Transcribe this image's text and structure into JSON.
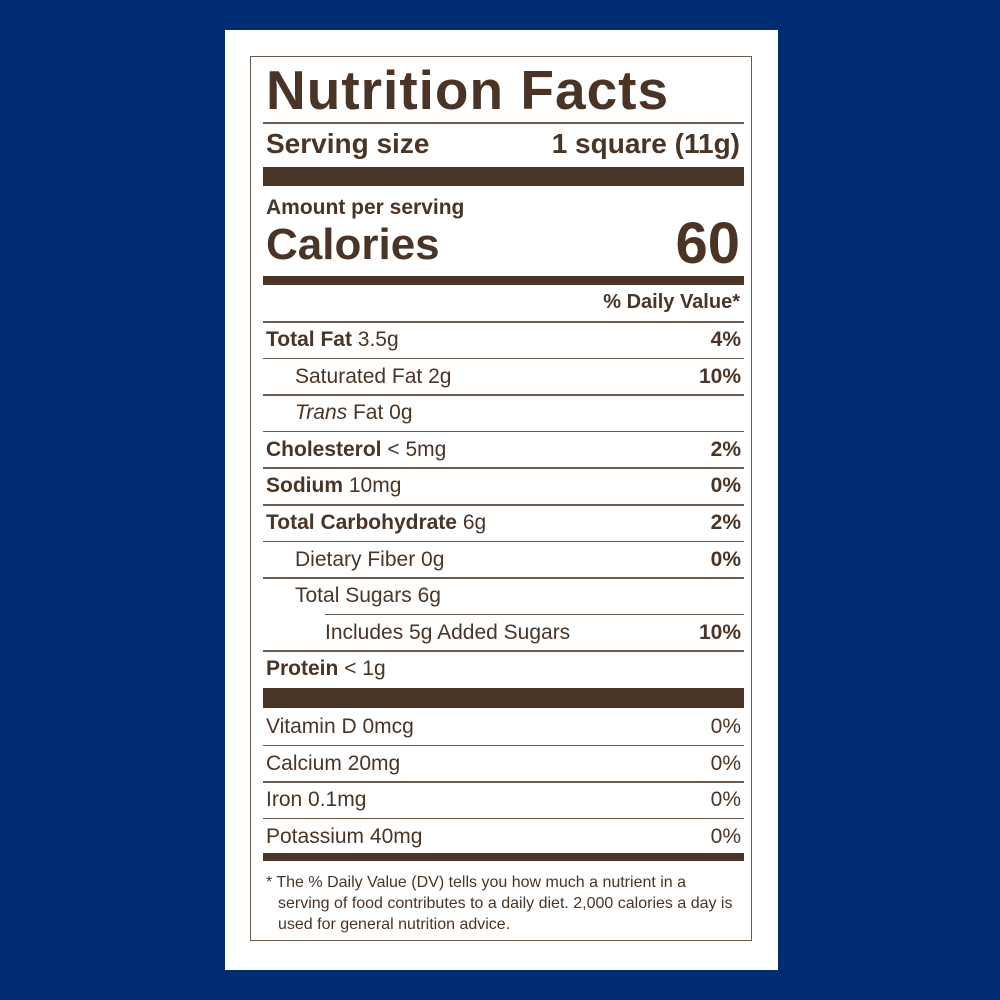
{
  "title": "Nutrition Facts",
  "serving": {
    "label": "Serving size",
    "value": "1 square (11g)"
  },
  "amount_label": "Amount per serving",
  "calories": {
    "label": "Calories",
    "value": "60"
  },
  "dv_header": "% Daily Value*",
  "nutrients": [
    {
      "name": "Total Fat",
      "amount": "3.5g",
      "dv": "4%",
      "indent": 0,
      "bold": true
    },
    {
      "name": "Saturated Fat",
      "amount": "2g",
      "dv": "10%",
      "indent": 1,
      "bold": false
    },
    {
      "name": "Trans",
      "name_suffix": "Fat",
      "amount": "0g",
      "dv": "",
      "indent": 1,
      "bold": false,
      "italic_prefix": true
    },
    {
      "name": "Cholesterol",
      "amount": "< 5mg",
      "dv": "2%",
      "indent": 0,
      "bold": true
    },
    {
      "name": "Sodium",
      "amount": "10mg",
      "dv": "0%",
      "indent": 0,
      "bold": true
    },
    {
      "name": "Total Carbohydrate",
      "amount": "6g",
      "dv": "2%",
      "indent": 0,
      "bold": true
    },
    {
      "name": "Dietary Fiber",
      "amount": "0g",
      "dv": "0%",
      "indent": 1,
      "bold": false
    },
    {
      "name": "Total Sugars",
      "amount": "6g",
      "dv": "",
      "indent": 1,
      "bold": false
    },
    {
      "name": "Includes 5g Added Sugars",
      "amount": "",
      "dv": "10%",
      "indent": 2,
      "bold": false
    },
    {
      "name": "Protein",
      "amount": "< 1g",
      "dv": "",
      "indent": 0,
      "bold": true
    }
  ],
  "vitamins": [
    {
      "name": "Vitamin D",
      "amount": "0mcg",
      "dv": "0%"
    },
    {
      "name": "Calcium",
      "amount": "20mg",
      "dv": "0%"
    },
    {
      "name": "Iron",
      "amount": "0.1mg",
      "dv": "0%"
    },
    {
      "name": "Potassium",
      "amount": "40mg",
      "dv": "0%"
    }
  ],
  "footnote": {
    "line1": "* The % Daily Value (DV) tells you how much a nutrient in a",
    "rest": "serving of food contributes to a daily diet. 2,000 calories a day is used for general nutrition advice."
  },
  "colors": {
    "background": "#002d72",
    "text": "#4a3426",
    "card": "#ffffff"
  }
}
